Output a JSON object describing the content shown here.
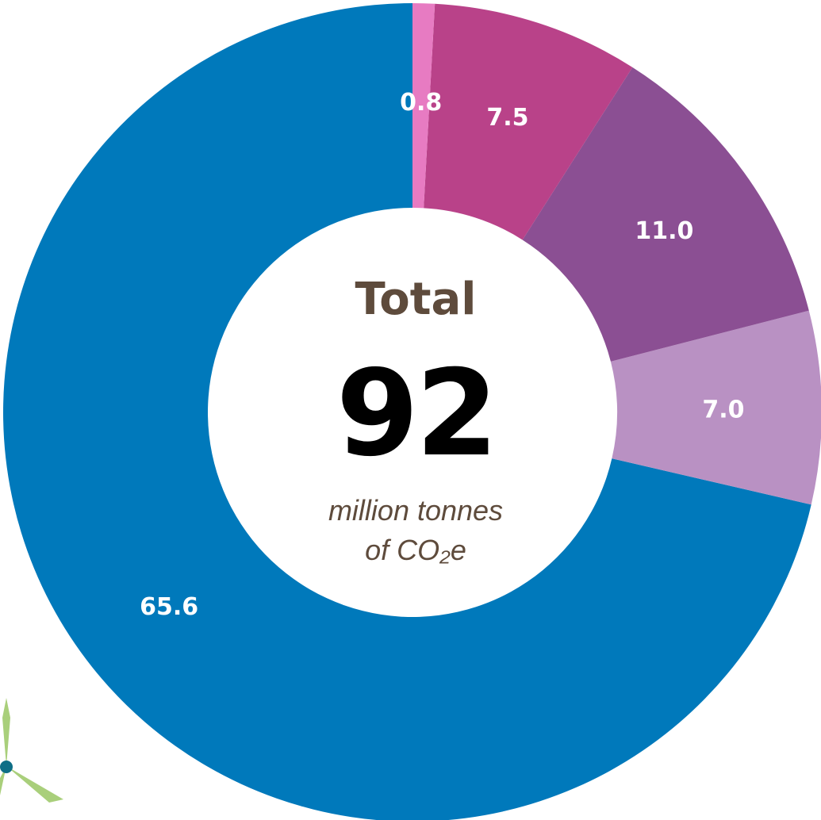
{
  "chart_data": {
    "type": "pie",
    "variant": "donut",
    "slices": [
      {
        "label": "65.6",
        "value": 65.6,
        "color": "#0079bb"
      },
      {
        "label": "7.0",
        "value": 7.0,
        "color": "#b991c3"
      },
      {
        "label": "11.0",
        "value": 11.0,
        "color": "#8b4f93"
      },
      {
        "label": "7.5",
        "value": 7.5,
        "color": "#b94289"
      },
      {
        "label": "0.8",
        "value": 0.8,
        "color": "#e77bc2"
      }
    ],
    "order": "counter-clockwise from top",
    "center": {
      "title": "Total",
      "total": "92",
      "unit_line1": "million tonnes",
      "unit_line2": "of CO₂e"
    },
    "colors": {
      "center_title": "#5e4b3c",
      "center_total": "#000000",
      "center_unit": "#5e4b3c",
      "slice_label": "#ffffff"
    }
  },
  "decoration": {
    "icon": "wind-turbine-icon",
    "colors": {
      "blade": "#a9cf7b",
      "hub": "#0e6e86"
    }
  }
}
